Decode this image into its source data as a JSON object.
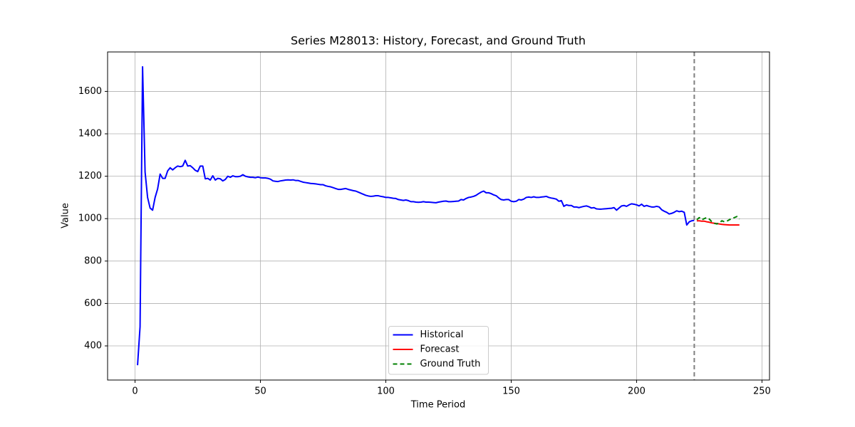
{
  "chart_data": {
    "type": "line",
    "title": "Series M28013: History, Forecast, and Ground Truth",
    "x_label": "Time Period",
    "y_label": "Value",
    "xlim": [
      -10.95,
      253.0
    ],
    "ylim": [
      239,
      1786
    ],
    "xticks": [
      0,
      50,
      100,
      150,
      200,
      250
    ],
    "yticks": [
      400,
      600,
      800,
      1000,
      1200,
      1400,
      1600
    ],
    "grid": true,
    "legend": "lower center",
    "vline": {
      "x": 223,
      "color": "#808080",
      "style": "dashed"
    },
    "series": [
      {
        "name": "Historical",
        "color": "#0000ff",
        "style": "solid",
        "x": [
          1,
          2,
          3,
          4,
          5,
          6,
          7,
          8,
          9,
          10,
          11,
          12,
          13,
          14,
          15,
          16,
          17,
          18,
          19,
          20,
          21,
          22,
          23,
          24,
          25,
          26,
          27,
          28,
          29,
          30,
          31,
          32,
          33,
          34,
          35,
          36,
          37,
          38,
          39,
          40,
          41,
          42,
          43,
          44,
          45,
          46,
          47,
          48,
          49,
          50,
          51,
          52,
          53,
          54,
          55,
          56,
          57,
          58,
          59,
          60,
          61,
          62,
          63,
          64,
          65,
          66,
          67,
          68,
          69,
          70,
          71,
          72,
          73,
          74,
          75,
          76,
          77,
          78,
          79,
          80,
          81,
          82,
          83,
          84,
          85,
          86,
          87,
          88,
          89,
          90,
          91,
          92,
          93,
          94,
          95,
          96,
          97,
          98,
          99,
          100,
          101,
          102,
          103,
          104,
          105,
          106,
          107,
          108,
          109,
          110,
          111,
          112,
          113,
          114,
          115,
          116,
          117,
          118,
          119,
          120,
          121,
          122,
          123,
          124,
          125,
          126,
          127,
          128,
          129,
          130,
          131,
          132,
          133,
          134,
          135,
          136,
          137,
          138,
          139,
          140,
          141,
          142,
          143,
          144,
          145,
          146,
          147,
          148,
          149,
          150,
          151,
          152,
          153,
          154,
          155,
          156,
          157,
          158,
          159,
          160,
          161,
          162,
          163,
          164,
          165,
          166,
          167,
          168,
          169,
          170,
          171,
          172,
          173,
          174,
          175,
          176,
          177,
          178,
          179,
          180,
          181,
          182,
          183,
          184,
          185,
          186,
          187,
          188,
          189,
          190,
          191,
          192,
          193,
          194,
          195,
          196,
          197,
          198,
          199,
          200,
          201,
          202,
          203,
          204,
          205,
          206,
          207,
          208,
          209,
          210,
          211,
          212,
          213,
          214,
          215,
          216,
          217,
          218,
          219,
          220,
          221,
          222,
          223
        ],
        "values": [
          309,
          490,
          1716,
          1220,
          1100,
          1050,
          1040,
          1100,
          1140,
          1210,
          1190,
          1190,
          1225,
          1240,
          1230,
          1240,
          1248,
          1245,
          1248,
          1275,
          1248,
          1250,
          1240,
          1228,
          1222,
          1248,
          1248,
          1188,
          1190,
          1182,
          1202,
          1182,
          1190,
          1188,
          1178,
          1185,
          1200,
          1195,
          1202,
          1198,
          1198,
          1200,
          1207,
          1200,
          1197,
          1195,
          1195,
          1193,
          1196,
          1193,
          1192,
          1192,
          1190,
          1186,
          1178,
          1176,
          1175,
          1178,
          1180,
          1182,
          1183,
          1182,
          1183,
          1180,
          1180,
          1176,
          1172,
          1170,
          1168,
          1166,
          1165,
          1164,
          1162,
          1160,
          1160,
          1155,
          1152,
          1150,
          1146,
          1142,
          1138,
          1138,
          1140,
          1142,
          1138,
          1135,
          1132,
          1130,
          1125,
          1120,
          1115,
          1110,
          1107,
          1105,
          1106,
          1108,
          1108,
          1105,
          1103,
          1100,
          1100,
          1098,
          1096,
          1095,
          1090,
          1088,
          1086,
          1088,
          1085,
          1080,
          1080,
          1078,
          1077,
          1078,
          1080,
          1078,
          1078,
          1077,
          1076,
          1075,
          1078,
          1080,
          1082,
          1083,
          1080,
          1080,
          1081,
          1082,
          1083,
          1090,
          1088,
          1095,
          1100,
          1102,
          1105,
          1110,
          1118,
          1125,
          1130,
          1122,
          1122,
          1118,
          1112,
          1108,
          1098,
          1090,
          1088,
          1090,
          1090,
          1082,
          1080,
          1082,
          1090,
          1088,
          1092,
          1100,
          1102,
          1100,
          1103,
          1100,
          1100,
          1102,
          1103,
          1105,
          1100,
          1097,
          1095,
          1092,
          1082,
          1085,
          1058,
          1065,
          1062,
          1062,
          1055,
          1055,
          1052,
          1055,
          1058,
          1060,
          1056,
          1050,
          1052,
          1046,
          1045,
          1045,
          1046,
          1047,
          1048,
          1049,
          1052,
          1040,
          1050,
          1060,
          1062,
          1058,
          1065,
          1070,
          1068,
          1065,
          1060,
          1068,
          1058,
          1062,
          1058,
          1055,
          1055,
          1058,
          1055,
          1042,
          1035,
          1030,
          1022,
          1025,
          1030,
          1037,
          1033,
          1035,
          1030,
          970,
          985,
          990,
          992
        ]
      },
      {
        "name": "Forecast",
        "color": "#ff0000",
        "style": "solid",
        "x": [
          224,
          225,
          226,
          227,
          228,
          229,
          230,
          231,
          232,
          233,
          234,
          235,
          236,
          237,
          238,
          239,
          240,
          241
        ],
        "values": [
          990,
          990,
          988,
          988,
          985,
          983,
          980,
          978,
          977,
          975,
          973,
          972,
          971,
          970,
          970,
          970,
          970,
          970
        ]
      },
      {
        "name": "Ground Truth",
        "color": "#008000",
        "style": "dashed",
        "x": [
          224,
          225,
          226,
          227,
          228,
          229,
          230,
          231,
          232,
          233,
          234,
          235,
          236,
          237,
          238,
          239,
          240,
          241
        ],
        "values": [
          995,
          1005,
          995,
          1000,
          1005,
          998,
          985,
          978,
          975,
          980,
          990,
          985,
          988,
          995,
          1000,
          1005,
          1010,
          998
        ]
      }
    ]
  }
}
